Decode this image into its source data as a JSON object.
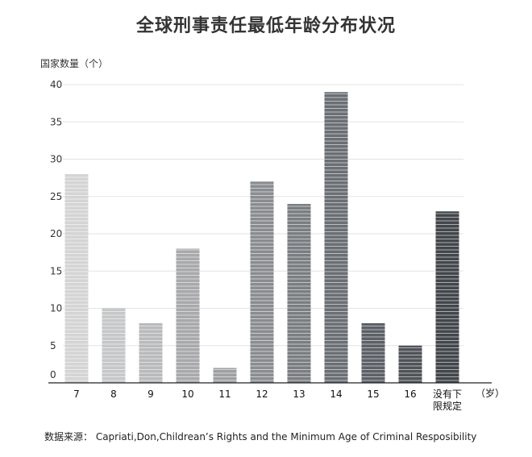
{
  "chart_data": {
    "type": "bar",
    "title": "全球刑事责任最低年龄分布状况",
    "ylabel": "国家数量（个）",
    "xlabel": "（岁）",
    "categories": [
      "7",
      "8",
      "9",
      "10",
      "11",
      "12",
      "13",
      "14",
      "15",
      "16",
      "没有下限规定"
    ],
    "category_lines": [
      [
        "7"
      ],
      [
        "8"
      ],
      [
        "9"
      ],
      [
        "10"
      ],
      [
        "11"
      ],
      [
        "12"
      ],
      [
        "13"
      ],
      [
        "14"
      ],
      [
        "15"
      ],
      [
        "16"
      ],
      [
        "没有下",
        "限规定"
      ]
    ],
    "values": [
      28,
      10,
      8,
      18,
      2,
      27,
      24,
      39,
      8,
      5,
      23
    ],
    "bar_colors": [
      "#d4d4d4",
      "#c6c7c8",
      "#b9babb",
      "#a8a9ab",
      "#9ea0a2",
      "#8a8d90",
      "#7a7e82",
      "#6a6f74",
      "#5c6167",
      "#4f5459",
      "#43474c"
    ],
    "ylim": [
      0,
      40
    ],
    "yticks": [
      0,
      5,
      10,
      15,
      20,
      25,
      30,
      35,
      40
    ],
    "grid": true
  },
  "source": "数据来源：  Capriati,Don,Childrean’s Rights and the Minimum Age of  Criminal Resposibility"
}
